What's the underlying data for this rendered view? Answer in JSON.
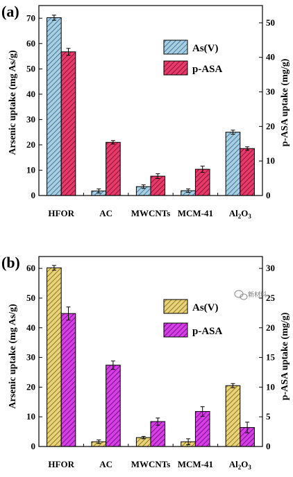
{
  "chart_data": [
    {
      "type": "bar",
      "panel_label": "(a)",
      "categories": [
        "HFOR",
        "AC",
        "MWCNTs",
        "MCM-41",
        "Al2O3"
      ],
      "category_display": [
        {
          "base": "HFOR",
          "parts": []
        },
        {
          "base": "AC",
          "parts": []
        },
        {
          "base": "MWCNTs",
          "parts": []
        },
        {
          "base": "MCM-41",
          "parts": []
        },
        {
          "base": "Al",
          "parts": [
            {
              "sub": "2"
            },
            {
              "text": "O"
            },
            {
              "sub": "3"
            }
          ]
        }
      ],
      "ylabel": "Arsenic uptake (mg As/g)",
      "y2label": "p-ASA uptake (mg/g)",
      "ylim": [
        0,
        75
      ],
      "yticks": [
        0,
        10,
        20,
        30,
        40,
        50,
        60,
        70
      ],
      "y2lim": [
        0,
        55
      ],
      "y2ticks": [
        0,
        10,
        20,
        30,
        40,
        50
      ],
      "legend_placement": "top-right",
      "series": [
        {
          "name": "As(V)",
          "axis": "left",
          "values": [
            70.2,
            1.8,
            3.5,
            1.9,
            25.0
          ],
          "errors": [
            1.0,
            0.8,
            0.7,
            0.7,
            0.8
          ],
          "color": "#a8cfe0",
          "hatch": "#1d4f8a"
        },
        {
          "name": "p-ASA",
          "axis": "right",
          "values": [
            41.6,
            15.4,
            5.6,
            7.6,
            13.6
          ],
          "errors": [
            1.0,
            0.5,
            0.7,
            0.9,
            0.5
          ],
          "color": "#e63b6a",
          "hatch": "#6b0022"
        }
      ]
    },
    {
      "type": "bar",
      "panel_label": "(b)",
      "categories": [
        "HFOR",
        "AC",
        "MWCNTs",
        "MCM-41",
        "Al2O3"
      ],
      "category_display": [
        {
          "base": "HFOR",
          "parts": []
        },
        {
          "base": "AC",
          "parts": []
        },
        {
          "base": "MWCNTs",
          "parts": []
        },
        {
          "base": "MCM-41",
          "parts": []
        },
        {
          "base": "Al",
          "parts": [
            {
              "sub": "2"
            },
            {
              "text": "O"
            },
            {
              "sub": "3"
            }
          ]
        }
      ],
      "ylabel": "Arsenic uptake (mg As/g)",
      "y2label": "p-ASA uptake (mg/g)",
      "ylim": [
        0,
        64
      ],
      "yticks": [
        0,
        10,
        20,
        30,
        40,
        50,
        60
      ],
      "y2lim": [
        0,
        32
      ],
      "y2ticks": [
        0,
        5,
        10,
        15,
        20,
        25,
        30
      ],
      "legend_placement": "top-right",
      "series": [
        {
          "name": "As(V)",
          "axis": "left",
          "values": [
            60.2,
            1.6,
            3.0,
            1.6,
            20.5
          ],
          "errors": [
            0.8,
            0.6,
            0.4,
            1.0,
            0.7
          ],
          "color": "#e8d27a",
          "hatch": "#6b5200"
        },
        {
          "name": "p-ASA",
          "axis": "right",
          "values": [
            22.4,
            13.7,
            4.2,
            5.9,
            3.2
          ],
          "errors": [
            1.1,
            0.7,
            0.6,
            0.8,
            0.9
          ],
          "color": "#d63ee6",
          "hatch": "#4e005c"
        }
      ]
    }
  ],
  "watermark": {
    "icon": "wechat-bubble-icon",
    "text": "新材料"
  }
}
